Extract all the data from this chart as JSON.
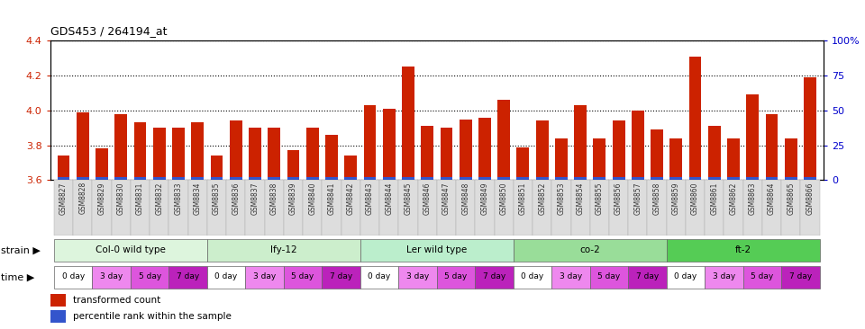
{
  "title": "GDS453 / 264194_at",
  "samples": [
    "GSM8827",
    "GSM8828",
    "GSM8829",
    "GSM8830",
    "GSM8831",
    "GSM8832",
    "GSM8833",
    "GSM8834",
    "GSM8835",
    "GSM8836",
    "GSM8837",
    "GSM8838",
    "GSM8839",
    "GSM8840",
    "GSM8841",
    "GSM8842",
    "GSM8843",
    "GSM8844",
    "GSM8845",
    "GSM8846",
    "GSM8847",
    "GSM8848",
    "GSM8849",
    "GSM8850",
    "GSM8851",
    "GSM8852",
    "GSM8853",
    "GSM8854",
    "GSM8855",
    "GSM8856",
    "GSM8857",
    "GSM8858",
    "GSM8859",
    "GSM8860",
    "GSM8861",
    "GSM8862",
    "GSM8863",
    "GSM8864",
    "GSM8865",
    "GSM8866"
  ],
  "red_values": [
    3.74,
    3.99,
    3.78,
    3.98,
    3.93,
    3.9,
    3.9,
    3.93,
    3.74,
    3.94,
    3.9,
    3.9,
    3.77,
    3.9,
    3.86,
    3.74,
    4.03,
    4.01,
    4.25,
    3.91,
    3.9,
    3.95,
    3.96,
    4.06,
    3.79,
    3.94,
    3.84,
    4.03,
    3.84,
    3.94,
    4.0,
    3.89,
    3.84,
    4.31,
    3.91,
    3.84,
    4.09,
    3.98,
    3.84,
    4.19
  ],
  "ylim": [
    3.6,
    4.4
  ],
  "yticks": [
    3.6,
    3.8,
    4.0,
    4.2,
    4.4
  ],
  "right_ytick_labels": [
    "0",
    "25",
    "50",
    "75",
    "100%"
  ],
  "right_ytick_vals": [
    0,
    25,
    50,
    75,
    100
  ],
  "bar_color": "#cc2200",
  "blue_color": "#3355cc",
  "strains": [
    {
      "label": "Col-0 wild type",
      "start": 0,
      "end": 8,
      "color": "#ddf5dd"
    },
    {
      "label": "lfy-12",
      "start": 8,
      "end": 16,
      "color": "#cceecc"
    },
    {
      "label": "Ler wild type",
      "start": 16,
      "end": 24,
      "color": "#bbeecc"
    },
    {
      "label": "co-2",
      "start": 24,
      "end": 32,
      "color": "#99dd99"
    },
    {
      "label": "ft-2",
      "start": 32,
      "end": 40,
      "color": "#55cc55"
    }
  ],
  "time_labels": [
    "0 day",
    "3 day",
    "5 day",
    "7 day"
  ],
  "time_colors": [
    "#ffffff",
    "#ee88ee",
    "#dd55dd",
    "#bb22bb"
  ],
  "legend_red": "transformed count",
  "legend_blue": "percentile rank within the sample",
  "ylabel_color": "#cc2200",
  "right_ylabel_color": "#0000cc",
  "xticklabel_bg": "#dddddd"
}
